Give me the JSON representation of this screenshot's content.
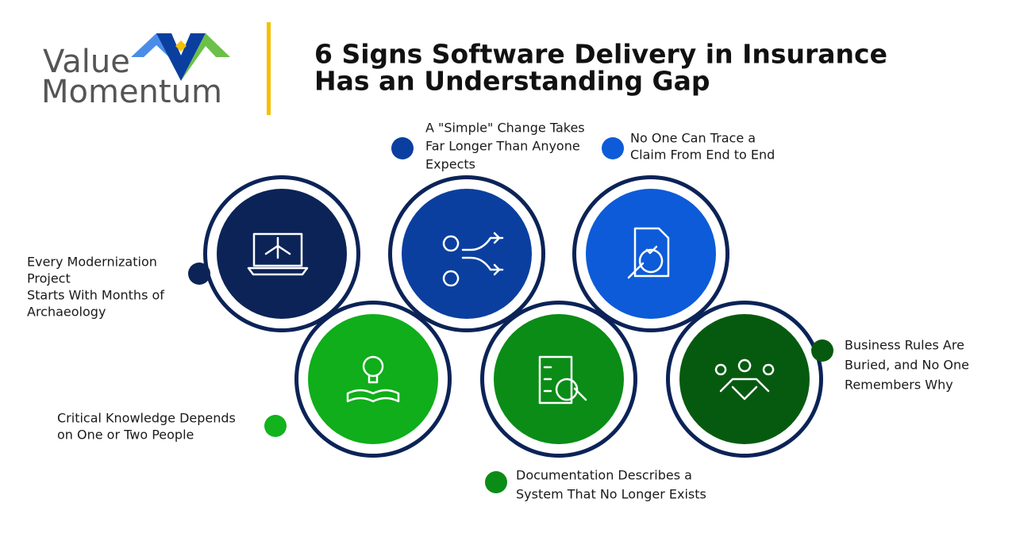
{
  "logo": {
    "line1": "Value",
    "line2": "Momentum"
  },
  "title": {
    "lines": [
      "6 Signs Software Delivery in Insurance",
      "Has an Understanding Gap"
    ]
  },
  "items": [
    {
      "lines": [
        "Every Modernization",
        "Project",
        "Starts With Months of",
        "Archaeology"
      ]
    },
    {
      "lines": [
        "A \"Simple\" Change Takes",
        "Far Longer Than Anyone",
        "Expects"
      ]
    },
    {
      "lines": [
        "No One Can Trace a",
        "Claim From End to End"
      ]
    },
    {
      "lines": [
        "Critical Knowledge Depends",
        "on One or Two People"
      ]
    },
    {
      "lines": [
        "Documentation Describes a",
        "System That No Longer Exists"
      ]
    },
    {
      "lines": [
        "Business Rules Are",
        "Buried, and No One",
        "Remembers Why"
      ]
    }
  ]
}
